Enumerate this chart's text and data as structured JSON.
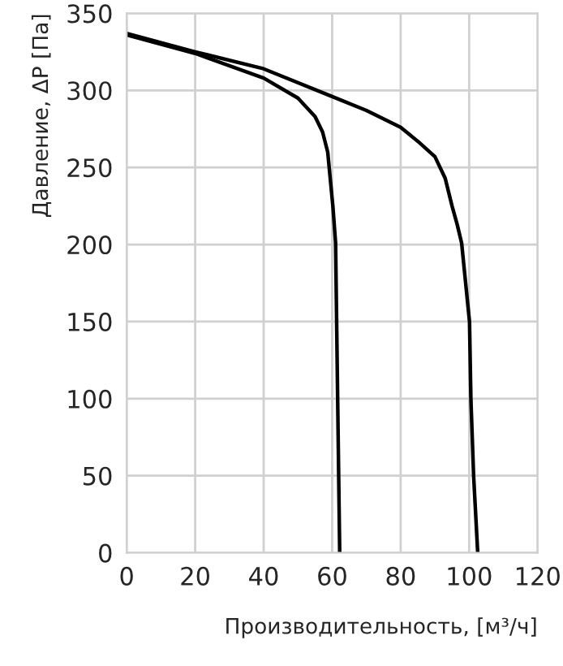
{
  "chart_data": {
    "type": "line",
    "xlabel": "Производительность, [м³/ч]",
    "ylabel": "Давление, ΔP [Па]",
    "series": [
      {
        "color": "#000000",
        "x": [
          0,
          20,
          40,
          50,
          55,
          57.2,
          58.7,
          60.2,
          61,
          61.6,
          62.2
        ],
        "values": [
          336,
          324,
          308,
          295,
          283,
          273,
          260,
          225,
          201,
          100,
          0
        ]
      },
      {
        "color": "#000000",
        "x": [
          0,
          20,
          40,
          60,
          70,
          80,
          85,
          90,
          93,
          95,
          96.5,
          97.8,
          100.1,
          100.5,
          101.3,
          102.5
        ],
        "values": [
          337,
          325,
          314,
          296,
          287,
          276,
          267,
          257,
          243,
          225,
          213,
          201,
          150,
          100,
          50,
          0
        ]
      }
    ],
    "xlim": [
      0,
      120
    ],
    "ylim": [
      0,
      350
    ],
    "xticks": [
      0,
      20,
      40,
      60,
      80,
      100,
      120
    ],
    "yticks": [
      0,
      50,
      100,
      150,
      200,
      250,
      300,
      350
    ],
    "grid": true,
    "marker": "none",
    "line_style": "solid"
  }
}
